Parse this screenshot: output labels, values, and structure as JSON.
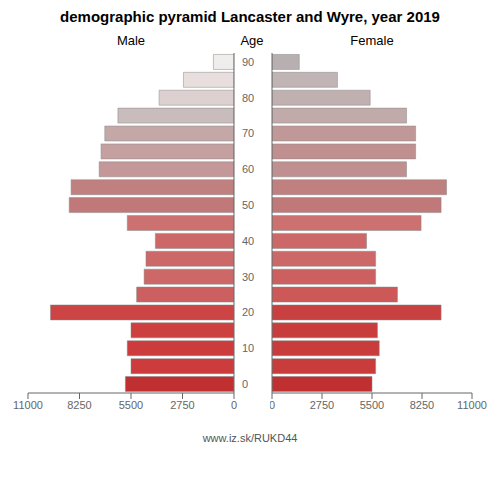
{
  "chart_data": {
    "type": "bar",
    "orientation": "horizontal",
    "title": "demographic pyramid Lancaster and Wyre, year 2019",
    "ylabel": "Age",
    "annotations": [
      "www.iz.sk/RUKD44"
    ],
    "categories": [
      "0",
      null,
      "10",
      null,
      "20",
      null,
      "30",
      null,
      "40",
      null,
      "50",
      null,
      "60",
      null,
      "70",
      null,
      "80",
      null,
      "90"
    ],
    "series": [
      {
        "name": "Male",
        "values": [
          5800,
          5500,
          5700,
          5500,
          9800,
          5200,
          4800,
          4700,
          4200,
          5700,
          8800,
          8700,
          7200,
          7100,
          6900,
          6200,
          4000,
          2700,
          1100
        ],
        "colors": [
          "#c03030",
          "#cc3c3c",
          "#cc3c3c",
          "#cc4040",
          "#cc4444",
          "#cc6060",
          "#cc6868",
          "#cc6868",
          "#cc6868",
          "#cc7070",
          "#c07878",
          "#c08080",
          "#c49898",
          "#c4a0a0",
          "#c4a8a8",
          "#c8bcbc",
          "#ddd0d0",
          "#e8dede",
          "#f0eded"
        ]
      },
      {
        "name": "Female",
        "values": [
          5500,
          5700,
          5900,
          5800,
          9300,
          6900,
          5700,
          5700,
          5200,
          8200,
          9300,
          9600,
          7400,
          7900,
          7900,
          7400,
          5400,
          3600,
          1500
        ],
        "colors": [
          "#c03030",
          "#c83c3c",
          "#c83c3c",
          "#c83c3c",
          "#c84040",
          "#cc5858",
          "#cc6060",
          "#cc6868",
          "#cc6868",
          "#cc7070",
          "#c07878",
          "#c08080",
          "#c09090",
          "#c09090",
          "#c09898",
          "#c0aaaa",
          "#c0b0b0",
          "#c0b4b4",
          "#b8b0b0"
        ]
      }
    ],
    "xlim": [
      0,
      11000
    ],
    "xticks": [
      0,
      2750,
      5500,
      8250,
      11000
    ],
    "grid": false
  }
}
